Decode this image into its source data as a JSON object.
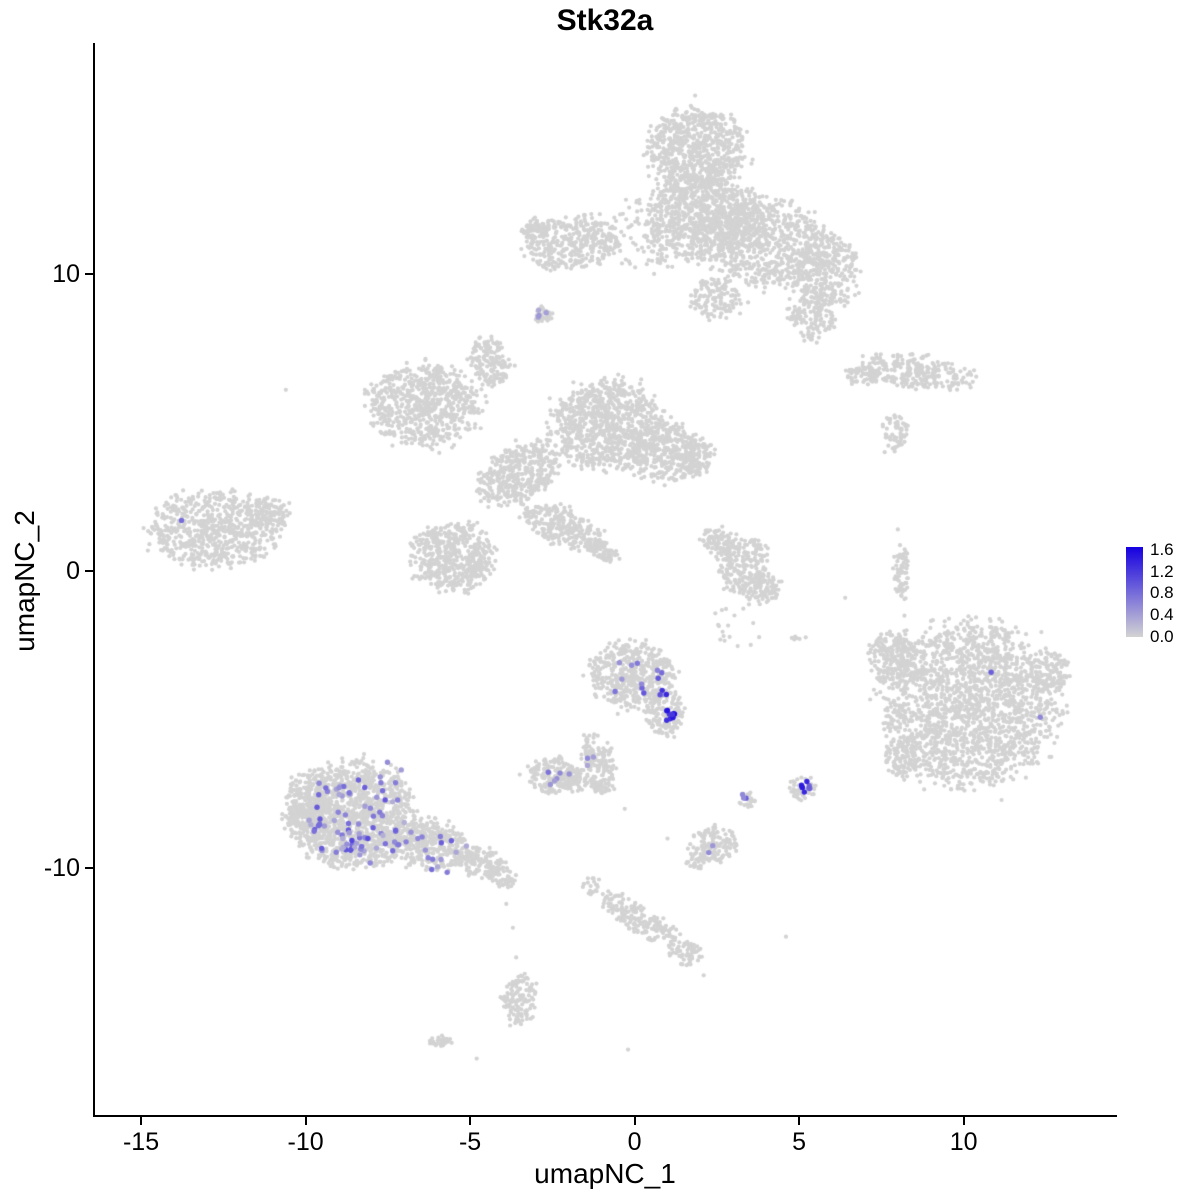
{
  "chart_data": {
    "type": "scatter",
    "title": "Stk32a",
    "xlabel": "umapNC_1",
    "ylabel": "umapNC_2",
    "xlim": [
      -16.4,
      14.6
    ],
    "ylim": [
      -18.3,
      17.7
    ],
    "xticks": [
      -15,
      -10,
      -5,
      0,
      5,
      10
    ],
    "yticks": [
      -10,
      0,
      10
    ],
    "grid": false,
    "point_color_low": "#D3D3D3",
    "point_color_high": "#1500E0",
    "legend": {
      "position": "right",
      "ticks": [
        1.6,
        1.2,
        0.8,
        0.4,
        0.0
      ],
      "vmax": 1.65
    },
    "background_clusters": [
      [
        1.9,
        14.2,
        1.5,
        1.4,
        0,
        700
      ],
      [
        2.1,
        11.9,
        1.7,
        1.5,
        0,
        800
      ],
      [
        4.0,
        11.1,
        1.9,
        1.5,
        -20,
        700
      ],
      [
        5.8,
        10.1,
        1.0,
        1.3,
        0,
        300
      ],
      [
        5.4,
        8.7,
        0.7,
        0.9,
        0,
        150
      ],
      [
        -1.9,
        11.0,
        1.5,
        0.9,
        10,
        350
      ],
      [
        -3.0,
        11.5,
        0.5,
        0.4,
        0,
        60
      ],
      [
        0.4,
        11.3,
        1.8,
        1.2,
        0,
        130
      ],
      [
        2.5,
        9.2,
        0.8,
        0.7,
        0,
        130
      ],
      [
        -2.8,
        8.6,
        0.28,
        0.28,
        0,
        30
      ],
      [
        8.6,
        6.7,
        1.7,
        0.55,
        -8,
        260
      ],
      [
        6.9,
        6.6,
        0.5,
        0.35,
        0,
        60
      ],
      [
        7.9,
        4.7,
        0.4,
        0.6,
        0,
        60
      ],
      [
        -6.4,
        5.6,
        1.7,
        1.35,
        0,
        700
      ],
      [
        -4.4,
        7.0,
        0.6,
        0.85,
        15,
        160
      ],
      [
        -0.8,
        4.9,
        1.7,
        1.5,
        0,
        850
      ],
      [
        0.9,
        4.0,
        1.1,
        1.0,
        0,
        350
      ],
      [
        1.9,
        3.9,
        0.5,
        0.65,
        0,
        100
      ],
      [
        -3.5,
        3.3,
        1.4,
        0.9,
        35,
        420
      ],
      [
        -5.5,
        0.5,
        1.25,
        1.15,
        0,
        520
      ],
      [
        -2.2,
        1.5,
        1.25,
        0.6,
        -25,
        260
      ],
      [
        -1.0,
        0.7,
        0.6,
        0.3,
        -30,
        80
      ],
      [
        -12.8,
        1.4,
        1.85,
        1.3,
        0,
        650
      ],
      [
        -11.1,
        2.0,
        0.6,
        0.5,
        0,
        100
      ],
      [
        3.3,
        0.2,
        0.8,
        1.0,
        0,
        220
      ],
      [
        2.5,
        1.0,
        0.5,
        0.5,
        0,
        80
      ],
      [
        3.9,
        -0.6,
        0.55,
        0.5,
        0,
        90
      ],
      [
        8.1,
        0.0,
        0.25,
        1.0,
        0,
        70
      ],
      [
        -0.1,
        -3.5,
        1.25,
        1.15,
        0,
        480
      ],
      [
        0.9,
        -4.8,
        0.6,
        0.85,
        0,
        160
      ],
      [
        -1.1,
        -6.3,
        0.45,
        0.85,
        20,
        110
      ],
      [
        -1.9,
        -7.0,
        0.55,
        0.4,
        0,
        80
      ],
      [
        -2.5,
        -6.9,
        0.75,
        0.6,
        0,
        150
      ],
      [
        -1.0,
        -7.2,
        0.4,
        0.3,
        0,
        50
      ],
      [
        -8.5,
        -8.2,
        1.8,
        1.85,
        0,
        1200
      ],
      [
        -9.9,
        -8.0,
        0.8,
        1.15,
        0,
        300
      ],
      [
        -6.3,
        -9.2,
        1.2,
        0.85,
        -15,
        350
      ],
      [
        -4.7,
        -9.8,
        0.75,
        0.5,
        -15,
        150
      ],
      [
        -4.0,
        -10.3,
        0.4,
        0.35,
        0,
        50
      ],
      [
        2.4,
        -9.2,
        0.75,
        0.6,
        0,
        130
      ],
      [
        1.9,
        -9.8,
        0.35,
        0.25,
        0,
        30
      ],
      [
        3.4,
        -7.7,
        0.25,
        0.3,
        0,
        20
      ],
      [
        5.1,
        -7.3,
        0.4,
        0.4,
        0,
        45
      ],
      [
        10.2,
        -4.5,
        2.6,
        2.7,
        0,
        1900
      ],
      [
        7.9,
        -3.0,
        0.8,
        0.95,
        0,
        220
      ],
      [
        8.1,
        -6.3,
        0.5,
        0.65,
        0,
        100
      ],
      [
        12.6,
        -3.4,
        0.6,
        0.8,
        0,
        120
      ],
      [
        0.1,
        -11.7,
        1.5,
        0.45,
        -33,
        190
      ],
      [
        1.6,
        -12.9,
        0.5,
        0.4,
        0,
        60
      ],
      [
        -1.3,
        -10.6,
        0.3,
        0.3,
        0,
        20
      ],
      [
        -3.5,
        -14.4,
        0.5,
        0.85,
        0,
        130
      ],
      [
        -5.9,
        -15.8,
        0.4,
        0.2,
        0,
        30
      ],
      [
        3.3,
        -1.8,
        1.2,
        0.8,
        0,
        18
      ],
      [
        5.0,
        -2.3,
        0.3,
        0.2,
        0,
        6
      ]
    ],
    "singletons": [
      [
        -10.6,
        6.1
      ],
      [
        6.4,
        -0.9
      ],
      [
        8.0,
        1.4
      ],
      [
        7.6,
        4.0
      ],
      [
        -0.3,
        -8.0
      ],
      [
        4.6,
        -12.3
      ],
      [
        -3.9,
        -11.2
      ],
      [
        -3.7,
        -12.0
      ],
      [
        -3.6,
        -13.0
      ],
      [
        -4.8,
        -16.4
      ],
      [
        2.1,
        -13.6
      ],
      [
        8.2,
        -1.5
      ],
      [
        -0.2,
        -16.1
      ],
      [
        1.0,
        -9.0
      ]
    ],
    "expression_clusters": [
      [
        -8.4,
        -8.4,
        1.6,
        1.4,
        70,
        0.25,
        1.0
      ],
      [
        -8.8,
        -9.2,
        0.8,
        0.5,
        12,
        0.3,
        1.1
      ],
      [
        -6.1,
        -9.3,
        1.0,
        0.5,
        10,
        0.3,
        0.9
      ],
      [
        -7.5,
        -6.8,
        0.5,
        0.4,
        4,
        0.3,
        0.7
      ],
      [
        0.2,
        -3.6,
        1.1,
        0.8,
        12,
        0.3,
        1.0
      ],
      [
        1.05,
        -4.85,
        0.18,
        0.25,
        9,
        1.0,
        1.65
      ],
      [
        0.9,
        -4.1,
        0.15,
        0.15,
        3,
        0.9,
        1.4
      ],
      [
        -2.4,
        -6.9,
        0.5,
        0.35,
        6,
        0.3,
        0.8
      ],
      [
        -1.3,
        -6.4,
        0.2,
        0.35,
        3,
        0.3,
        0.6
      ],
      [
        5.1,
        -7.25,
        0.25,
        0.3,
        9,
        0.6,
        1.5
      ],
      [
        3.4,
        -7.65,
        0.15,
        0.2,
        3,
        0.5,
        1.0
      ],
      [
        -2.8,
        8.65,
        0.2,
        0.2,
        4,
        0.3,
        0.7
      ],
      [
        -13.8,
        1.7,
        0.05,
        0.05,
        1,
        0.8,
        0.8
      ],
      [
        10.8,
        -3.4,
        0.05,
        0.05,
        1,
        0.9,
        0.9
      ],
      [
        12.3,
        -4.9,
        0.05,
        0.05,
        1,
        0.6,
        0.6
      ],
      [
        2.3,
        -9.3,
        0.3,
        0.25,
        2,
        0.3,
        0.6
      ],
      [
        -5.9,
        -9.9,
        0.4,
        0.3,
        4,
        0.3,
        0.8
      ]
    ]
  }
}
